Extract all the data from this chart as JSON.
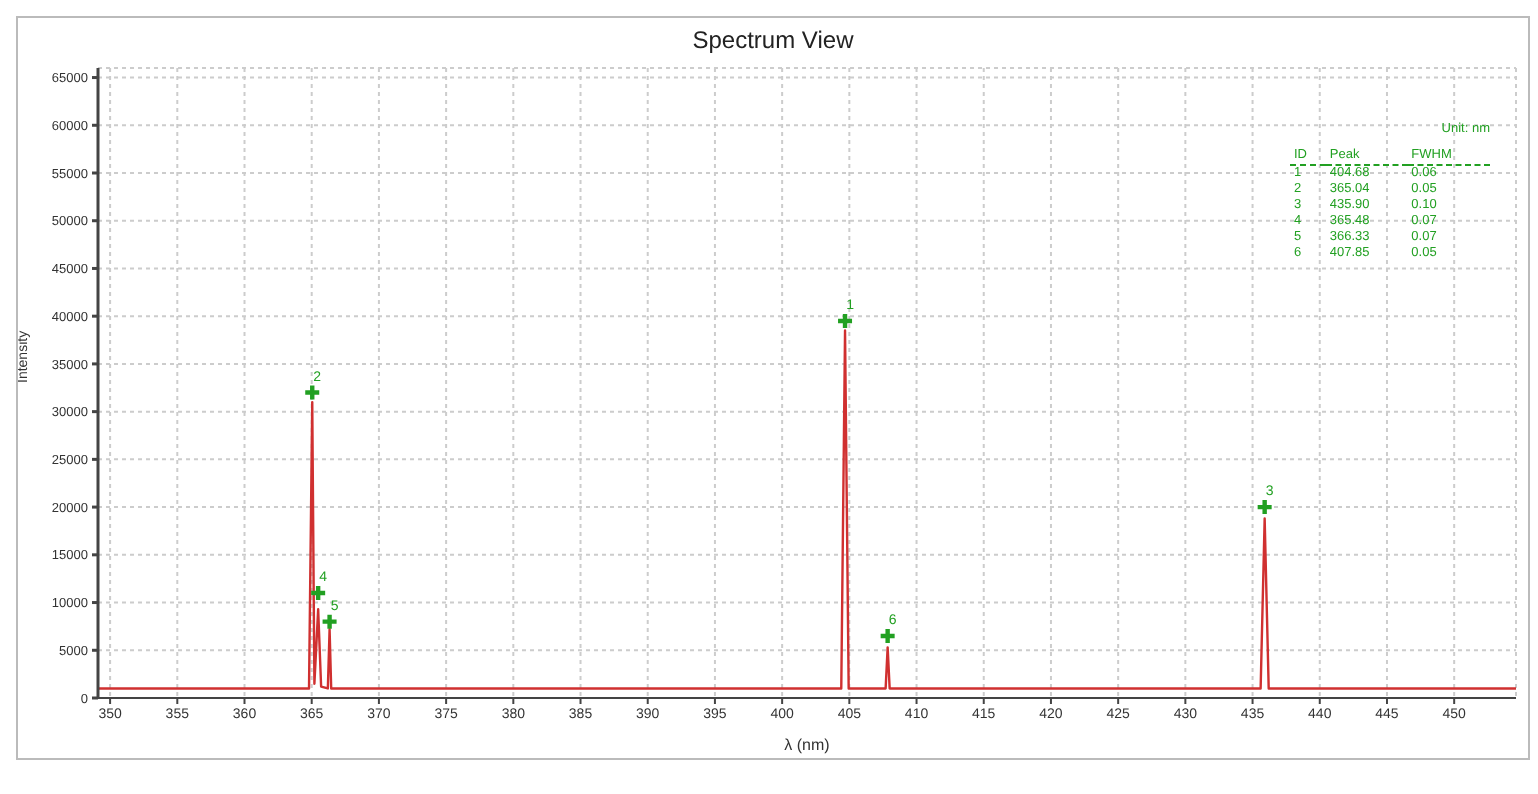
{
  "chart_data": {
    "type": "line",
    "title": "Spectrum View",
    "xlabel": "λ (nm)",
    "ylabel": "Intensity",
    "xlim": [
      349.1,
      454.6
    ],
    "xticks": [
      350,
      355,
      360,
      365,
      370,
      375,
      380,
      385,
      390,
      395,
      400,
      405,
      410,
      415,
      420,
      425,
      430,
      435,
      440,
      445,
      450
    ],
    "ylim": [
      0,
      66000
    ],
    "yticks": [
      0,
      5000,
      10000,
      15000,
      20000,
      25000,
      30000,
      35000,
      40000,
      45000,
      50000,
      55000,
      60000,
      65000
    ],
    "grid": true,
    "series": [
      {
        "color": "#d03030",
        "marker": "none",
        "x": [
          349.1,
          364.8,
          365.04,
          365.2,
          365.48,
          365.7,
          366.2,
          366.33,
          366.45,
          404.4,
          404.68,
          404.95,
          407.7,
          407.85,
          408.0,
          435.6,
          435.9,
          436.2,
          454.6
        ],
        "values": [
          1000,
          1000,
          31000,
          1500,
          9300,
          1200,
          1000,
          7200,
          1000,
          1000,
          38500,
          1000,
          1000,
          5300,
          1000,
          1000,
          18800,
          1000,
          1000
        ]
      },
      {
        "type": "scatter",
        "color": "#22a022",
        "marker": "cross",
        "x": [
          404.68,
          365.04,
          435.9,
          365.48,
          366.33,
          407.85
        ],
        "values": [
          39500,
          32000,
          20000,
          11000,
          8000,
          6500
        ]
      }
    ],
    "annotations": [
      "Unit: nm",
      "ID",
      "Peak",
      "FWHM",
      "1",
      "404.68",
      "0.06",
      "2",
      "365.04",
      "0.05",
      "3",
      "435.90",
      "0.10",
      "4",
      "365.48",
      "0.07",
      "5",
      "366.33",
      "0.07",
      "6",
      "407.85",
      "0.05",
      {
        "text": "1",
        "x": 404.68,
        "y": 39500
      },
      {
        "text": "2",
        "x": 365.04,
        "y": 32000
      },
      {
        "text": "3",
        "x": 435.9,
        "y": 20000
      },
      {
        "text": "4",
        "x": 365.48,
        "y": 11000
      },
      {
        "text": "5",
        "x": 366.33,
        "y": 8000
      },
      {
        "text": "6",
        "x": 407.85,
        "y": 6500
      }
    ]
  }
}
